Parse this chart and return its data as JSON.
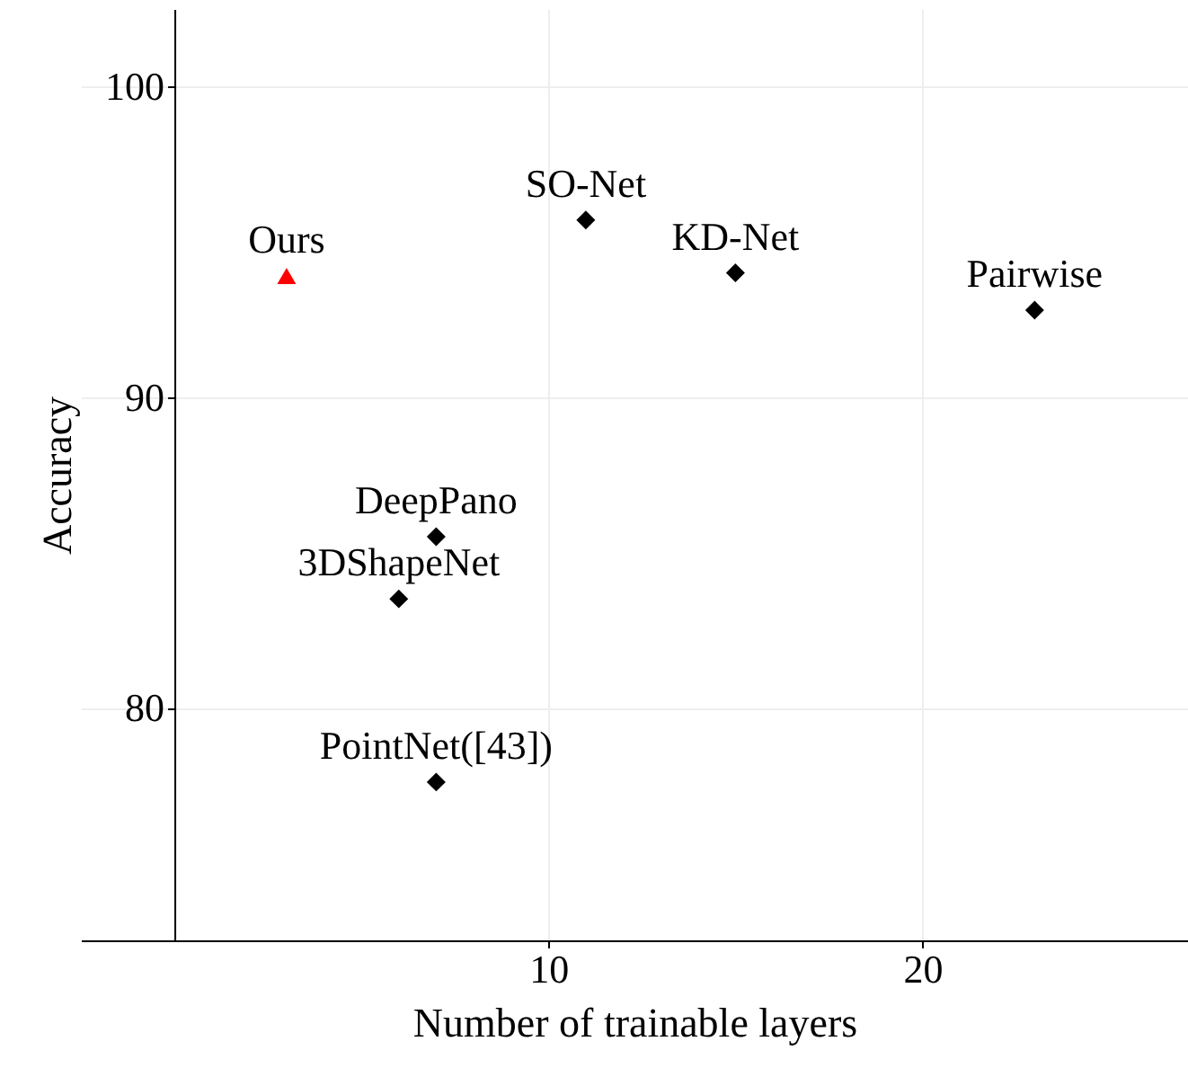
{
  "chart_data": {
    "type": "scatter",
    "xlabel": "Number of trainable layers",
    "ylabel": "Accuracy",
    "xlim": [
      -2.5,
      27.1
    ],
    "ylim": [
      72.5,
      102.5
    ],
    "xticks": [
      10,
      20
    ],
    "yticks": [
      80,
      90,
      100
    ],
    "grid": true,
    "series": [
      {
        "color": "#ff0000",
        "marker": "triangle",
        "x": [
          3
        ],
        "values": [
          93.9
        ]
      },
      {
        "color": "#000000",
        "marker": "diamond",
        "x": [
          11,
          15,
          23,
          7,
          6,
          7
        ],
        "values": [
          95.7,
          94.0,
          92.8,
          85.5,
          83.5,
          77.6
        ]
      }
    ],
    "annotations": [
      {
        "text": "Ours",
        "x": 3,
        "y": 93.9
      },
      {
        "text": "SO-Net",
        "x": 11,
        "y": 95.7
      },
      {
        "text": "KD-Net",
        "x": 15,
        "y": 94.0
      },
      {
        "text": "Pairwise",
        "x": 23,
        "y": 92.8
      },
      {
        "text": "DeepPano",
        "x": 7,
        "y": 85.5
      },
      {
        "text": "3DShapeNet",
        "x": 6,
        "y": 83.5
      },
      {
        "text": "PointNet([43])",
        "x": 7,
        "y": 77.6
      }
    ]
  }
}
